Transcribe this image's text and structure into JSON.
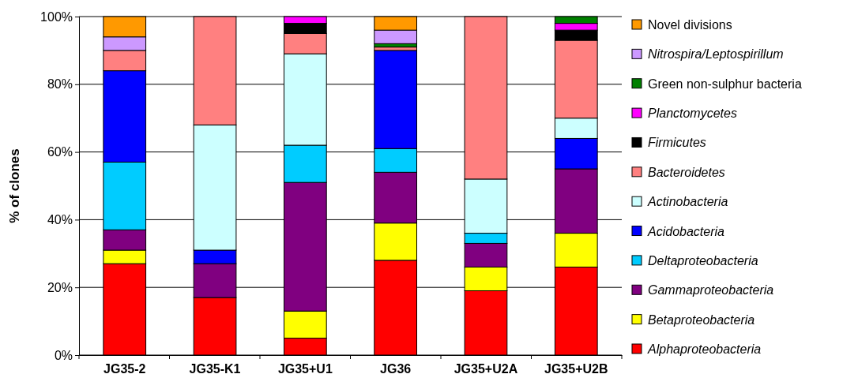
{
  "chart_data": {
    "type": "bar",
    "stacked": true,
    "ylabel": "% of clones",
    "categories": [
      "JG35-2",
      "JG35-K1",
      "JG35+U1",
      "JG36",
      "JG35+U2A",
      "JG35+U2B"
    ],
    "ylim": [
      0,
      100
    ],
    "yticks": [
      {
        "value": 0,
        "label": "0%"
      },
      {
        "value": 20,
        "label": "20%"
      },
      {
        "value": 40,
        "label": "40%"
      },
      {
        "value": 60,
        "label": "60%"
      },
      {
        "value": 80,
        "label": "80%"
      },
      {
        "value": 100,
        "label": "100%"
      }
    ],
    "grid": "y",
    "legend": "right",
    "series": [
      {
        "name": "Alphaproteobacteria",
        "color": "#ff0000",
        "values": [
          27,
          17,
          5,
          28,
          19,
          26
        ]
      },
      {
        "name": "Betaproteobacteria",
        "color": "#ffff00",
        "values": [
          4,
          null,
          8,
          11,
          7,
          10
        ]
      },
      {
        "name": "Gammaproteobacteria",
        "color": "#800080",
        "values": [
          6,
          10,
          38,
          15,
          7,
          19
        ]
      },
      {
        "name": "Deltaproteobacteria",
        "color": "#00ccff",
        "values": [
          20,
          null,
          11,
          7,
          3,
          null
        ]
      },
      {
        "name": "Acidobacteria",
        "color": "#0000ff",
        "values": [
          27,
          4,
          null,
          29,
          null,
          9
        ]
      },
      {
        "name": "Actinobacteria",
        "color": "#ccffff",
        "values": [
          null,
          37,
          27,
          null,
          16,
          6
        ]
      },
      {
        "name": "Bacteroidetes",
        "color": "#ff8080",
        "values": [
          6,
          32,
          6,
          1,
          48,
          23
        ]
      },
      {
        "name": "Firmicutes",
        "color": "#000000",
        "values": [
          null,
          null,
          3,
          null,
          null,
          3
        ]
      },
      {
        "name": "Planctomycetes",
        "color": "#ff00ff",
        "values": [
          null,
          null,
          2,
          null,
          null,
          2
        ]
      },
      {
        "name": "Green non-sulphur bacteria",
        "color": "#008000",
        "values": [
          null,
          null,
          null,
          1,
          null,
          2
        ]
      },
      {
        "name": "Nitrospira/Leptospirillum",
        "color": "#cc99ff",
        "values": [
          4,
          null,
          null,
          4,
          null,
          null
        ]
      },
      {
        "name": "Novel divisions",
        "color": "#ff9900",
        "values": [
          6,
          null,
          null,
          4,
          null,
          null
        ]
      }
    ]
  }
}
